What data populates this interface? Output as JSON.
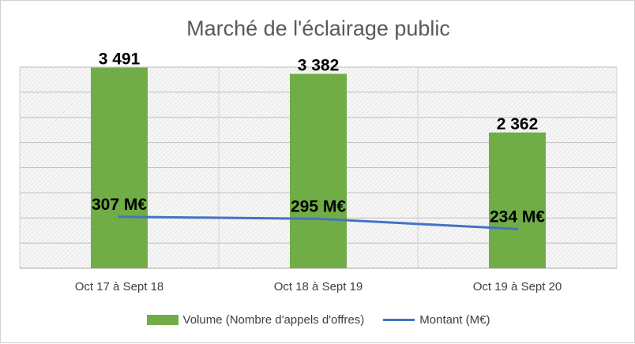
{
  "chart_data": {
    "type": "bar",
    "title": "Marché de l'éclairage public",
    "categories": [
      "Oct 17 à Sept 18",
      "Oct 18 à Sept 19",
      "Oct 19 à Sept 20"
    ],
    "series": [
      {
        "name": "Volume (Nombre d'appels d'offres)",
        "type": "bar",
        "values": [
          3491,
          3382,
          2362
        ],
        "labels": [
          "3 491",
          "3 382",
          "2 362"
        ],
        "color": "#70ad47"
      },
      {
        "name": "Montant (M€)",
        "type": "line",
        "values": [
          307,
          295,
          234
        ],
        "labels": [
          "307 M€",
          "295 M€",
          "234 M€"
        ],
        "color": "#4472c4"
      }
    ],
    "ylim_bar": [
      0,
      3500
    ],
    "ylim_line": [
      0,
      1200
    ],
    "grid": true,
    "legend_position": "bottom"
  }
}
